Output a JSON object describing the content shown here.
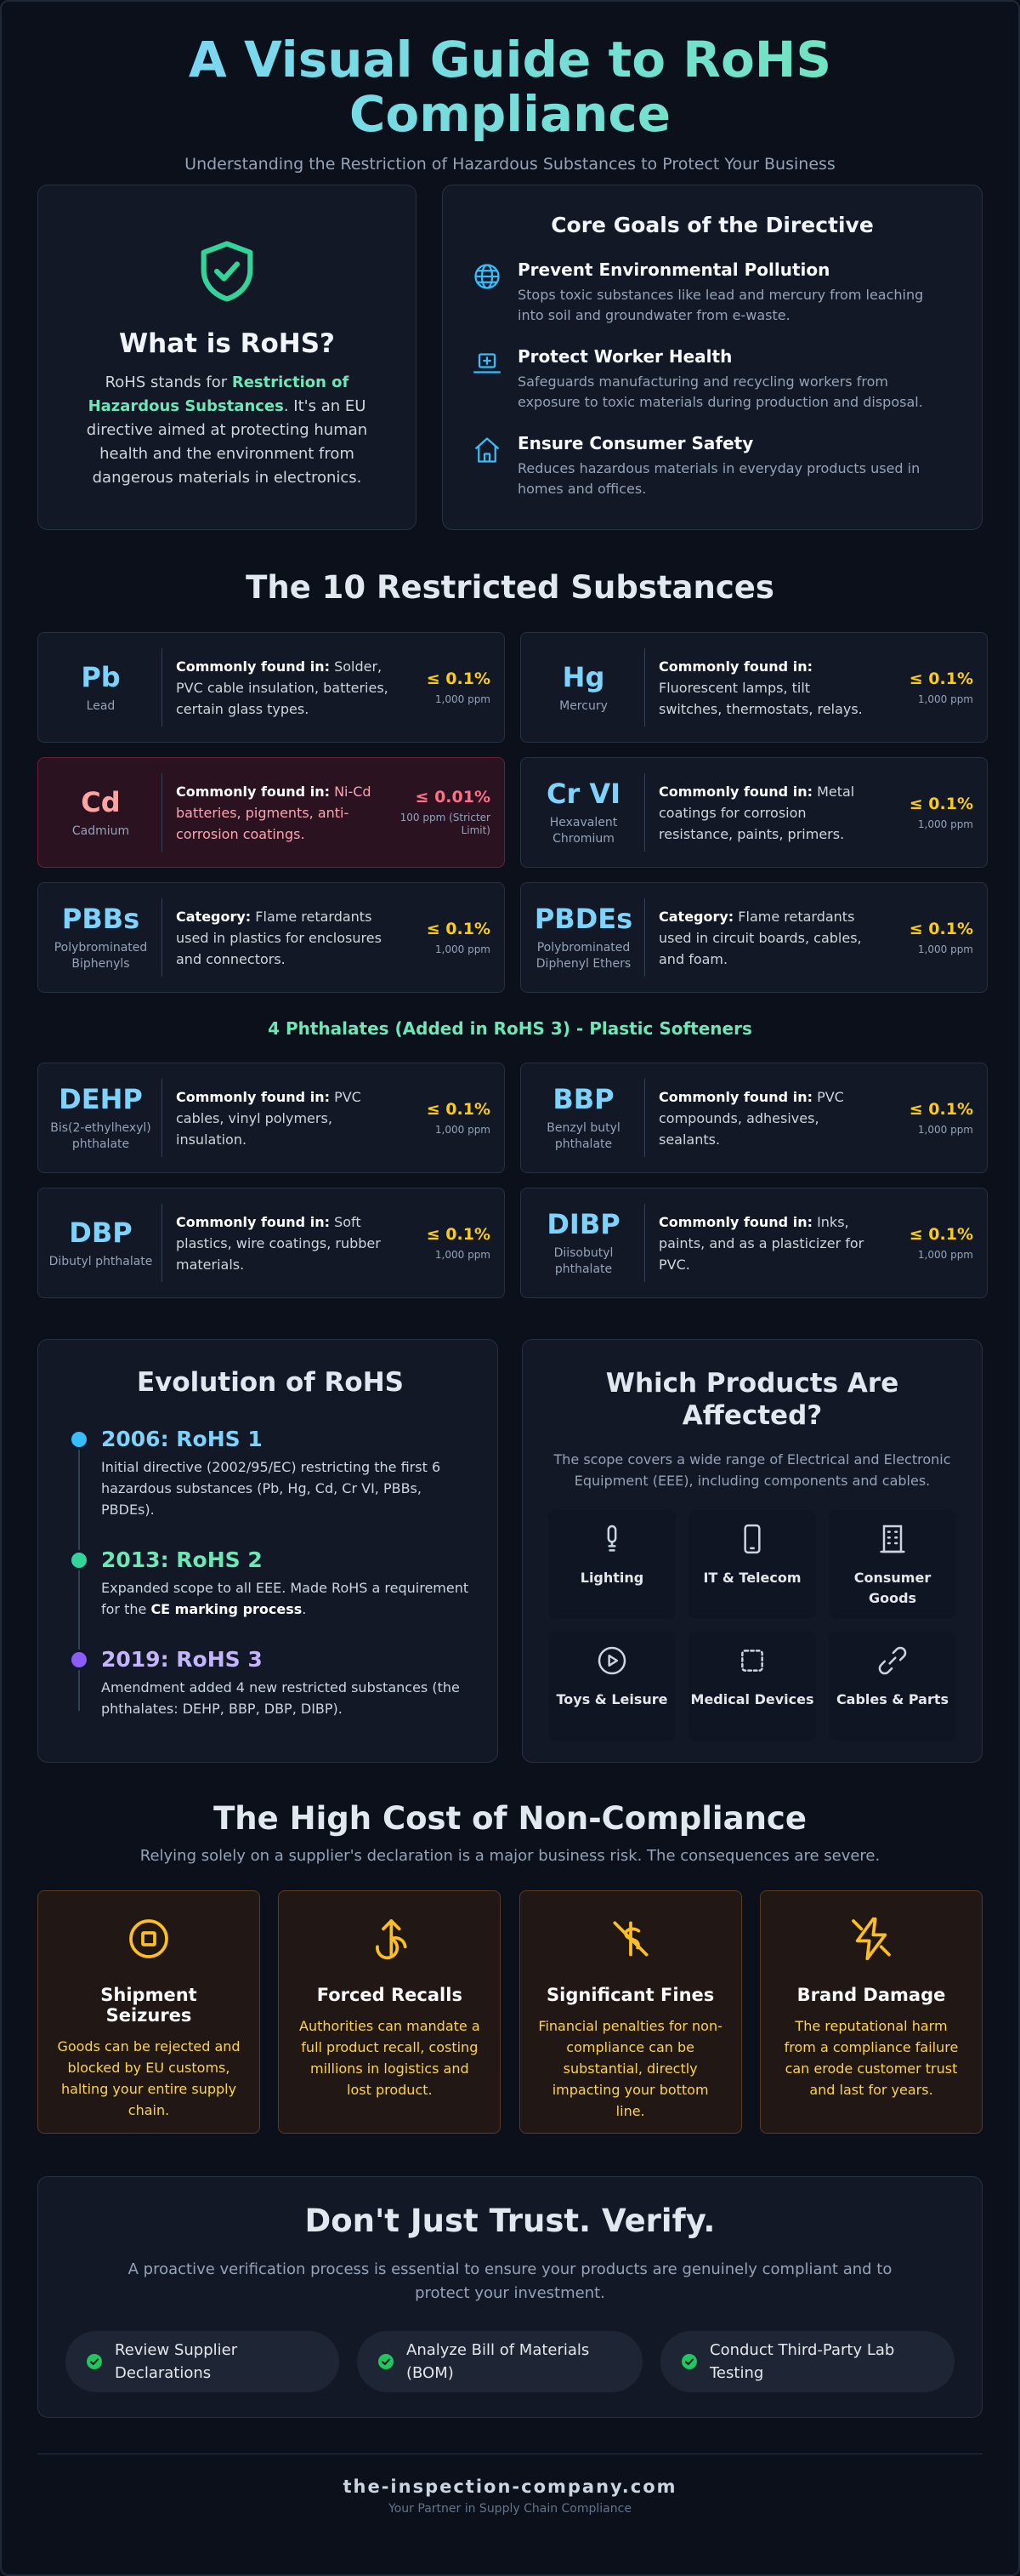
{
  "header": {
    "title": "A Visual Guide to RoHS Compliance",
    "subtitle": "Understanding the Restriction of Hazardous Substances to Protect Your Business"
  },
  "intro": {
    "title": "What is RoHS?",
    "text_before": "RoHS stands for ",
    "text_highlight": "Restriction of Hazardous Substances",
    "text_after": ". It's an EU directive aimed at protecting human health and the environment from dangerous materials in electronics."
  },
  "goals": {
    "title": "Core Goals of the Directive",
    "items": [
      {
        "icon": "globe-icon",
        "title": "Prevent Environmental Pollution",
        "desc": "Stops toxic substances like lead and mercury from leaching into soil and groundwater from e-waste."
      },
      {
        "icon": "worker-health-icon",
        "title": "Protect Worker Health",
        "desc": "Safeguards manufacturing and recycling workers from exposure to toxic materials during production and disposal."
      },
      {
        "icon": "home-icon",
        "title": "Ensure Consumer Safety",
        "desc": "Reduces hazardous materials in everyday products used in homes and offices."
      }
    ]
  },
  "substances": {
    "title": "The 10 Restricted Substances",
    "items": [
      {
        "symbol": "Pb",
        "name": "Lead",
        "label": "Commonly found in:",
        "value": " Solder, PVC cable insulation, batteries, certain glass types.",
        "limit": "≤ 0.1%",
        "limit_sub": "1,000 ppm",
        "danger": false
      },
      {
        "symbol": "Hg",
        "name": "Mercury",
        "label": "Commonly found in:",
        "value": " Fluorescent lamps, tilt switches, thermostats, relays.",
        "limit": "≤ 0.1%",
        "limit_sub": "1,000 ppm",
        "danger": false
      },
      {
        "symbol": "Cd",
        "name": "Cadmium",
        "label": "Commonly found in:",
        "value": " Ni-Cd batteries, pigments, anti-corrosion coatings.",
        "limit": "≤ 0.01%",
        "limit_sub": "100 ppm (Stricter Limit)",
        "danger": true
      },
      {
        "symbol": "Cr VI",
        "name": "Hexavalent Chromium",
        "label": "Commonly found in:",
        "value": " Metal coatings for corrosion resistance, paints, primers.",
        "limit": "≤ 0.1%",
        "limit_sub": "1,000 ppm",
        "danger": false
      },
      {
        "symbol": "PBBs",
        "name": "Polybrominated Biphenyls",
        "label": "Category:",
        "value": " Flame retardants used in plastics for enclosures and connectors.",
        "limit": "≤ 0.1%",
        "limit_sub": "1,000 ppm",
        "danger": false
      },
      {
        "symbol": "PBDEs",
        "name": "Polybrominated Diphenyl Ethers",
        "label": "Category:",
        "value": " Flame retardants used in circuit boards, cables, and foam.",
        "limit": "≤ 0.1%",
        "limit_sub": "1,000 ppm",
        "danger": false
      }
    ],
    "phthalates_title": "4 Phthalates (Added in RoHS 3) - Plastic Softeners",
    "phthalates": [
      {
        "symbol": "DEHP",
        "name": "Bis(2-ethylhexyl) phthalate",
        "label": "Commonly found in:",
        "value": " PVC cables, vinyl polymers, insulation.",
        "limit": "≤ 0.1%",
        "limit_sub": "1,000 ppm"
      },
      {
        "symbol": "BBP",
        "name": "Benzyl butyl phthalate",
        "label": "Commonly found in:",
        "value": " PVC compounds, adhesives, sealants.",
        "limit": "≤ 0.1%",
        "limit_sub": "1,000 ppm"
      },
      {
        "symbol": "DBP",
        "name": "Dibutyl phthalate",
        "label": "Commonly found in:",
        "value": " Soft plastics, wire coatings, rubber materials.",
        "limit": "≤ 0.1%",
        "limit_sub": "1,000 ppm"
      },
      {
        "symbol": "DIBP",
        "name": "Diisobutyl phthalate",
        "label": "Commonly found in:",
        "value": " Inks, paints, and as a plasticizer for PVC.",
        "limit": "≤ 0.1%",
        "limit_sub": "1,000 ppm"
      }
    ]
  },
  "evolution": {
    "title": "Evolution of RoHS",
    "items": [
      {
        "year": "2006: RoHS 1",
        "color": "#38bdf8",
        "desc_before": "Initial directive (2002/95/EC) restricting the first 6 hazardous substances (Pb, Hg, Cd, Cr VI, PBBs, PBDEs).",
        "desc_bold": "",
        "desc_after": ""
      },
      {
        "year": "2013: RoHS 2",
        "color": "#34d399",
        "desc_before": "Expanded scope to all EEE. Made RoHS a requirement for the ",
        "desc_bold": "CE marking process",
        "desc_after": "."
      },
      {
        "year": "2019: RoHS 3",
        "color": "#a78bfa",
        "desc_before": "Amendment added 4 new restricted substances (the phthalates: DEHP, BBP, DBP, DIBP).",
        "desc_bold": "",
        "desc_after": ""
      }
    ]
  },
  "products": {
    "title": "Which Products Are Affected?",
    "desc": "The scope covers a wide range of Electrical and Electronic Equipment (EEE), including components and cables.",
    "items": [
      {
        "icon": "lightbulb-icon",
        "label": "Lighting"
      },
      {
        "icon": "smartphone-icon",
        "label": "IT & Telecom"
      },
      {
        "icon": "building-icon",
        "label": "Consumer Goods"
      },
      {
        "icon": "play-icon",
        "label": "Toys & Leisure"
      },
      {
        "icon": "microchip-icon",
        "label": "Medical Devices"
      },
      {
        "icon": "cable-icon",
        "label": "Cables & Parts"
      }
    ]
  },
  "cost": {
    "title": "The High Cost of Non-Compliance",
    "subtitle": "Relying solely on a supplier's declaration is a major business risk. The consequences are severe.",
    "items": [
      {
        "icon": "stop-circle-icon",
        "title": "Shipment Seizures",
        "desc": "Goods can be rejected and blocked by EU customs, halting your entire supply chain."
      },
      {
        "icon": "recall-arrow-icon",
        "title": "Forced Recalls",
        "desc": "Authorities can mandate a full product recall, costing millions in logistics and lost product."
      },
      {
        "icon": "dollar-off-icon",
        "title": "Significant Fines",
        "desc": "Financial penalties for non-compliance can be substantial, directly impacting your bottom line."
      },
      {
        "icon": "broken-lightning-icon",
        "title": "Brand Damage",
        "desc": "The reputational harm from a compliance failure can erode customer trust and last for years."
      }
    ]
  },
  "verify": {
    "title": "Don't Just Trust. Verify.",
    "desc": "A proactive verification process is essential to ensure your products are genuinely compliant and to protect your investment.",
    "items": [
      {
        "label": "Review Supplier Declarations"
      },
      {
        "label": "Analyze Bill of Materials (BOM)"
      },
      {
        "label": "Conduct Third-Party Lab Testing"
      }
    ]
  },
  "footer": {
    "brand": "the-inspection-company.com",
    "tagline": "Your Partner in Supply Chain Compliance"
  },
  "colors": {
    "accent_blue": "#7dd3fc",
    "accent_green": "#6ee7b7",
    "limit_yellow": "#facc15",
    "danger_red": "#fb7185"
  }
}
